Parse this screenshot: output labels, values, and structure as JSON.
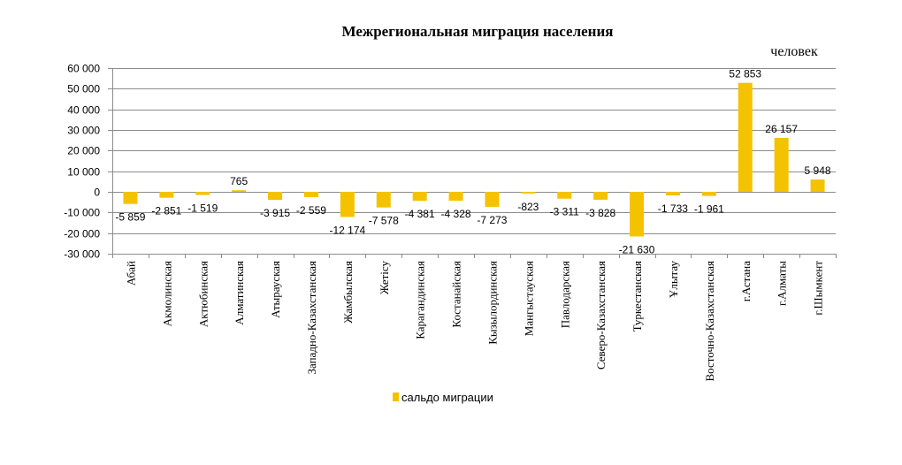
{
  "chart_data": {
    "type": "bar",
    "title": "Межрегиональная миграция населения",
    "unit_label": "человек",
    "xlabel": "",
    "ylabel": "",
    "ylim": [
      -30000,
      60000
    ],
    "yticks": [
      60000,
      50000,
      40000,
      30000,
      20000,
      10000,
      0,
      -10000,
      -20000,
      -30000
    ],
    "ytick_labels": [
      "60 000",
      "50 000",
      "40 000",
      "30 000",
      "20 000",
      "10 000",
      "0",
      "-10 000",
      "-20 000",
      "-30 000"
    ],
    "grid": true,
    "legend_position": "bottom",
    "categories": [
      "Абай",
      "Акмолинская",
      "Актюбинская",
      "Алматинская",
      "Атырауская",
      "Западно-Казахстанская",
      "Жамбылская",
      "Жетісу",
      "Карагандинская",
      "Костанайская",
      "Кызылординская",
      "Мангыстауская",
      "Павлодарская",
      "Северо-Казахстанская",
      "Туркестанская",
      "Ұлытау",
      "Восточно-Казахстанская",
      "г.Астана",
      "г.Алматы",
      "г.Шымкент"
    ],
    "series": [
      {
        "name": "сальдо миграции",
        "color": "#F5C200",
        "values": [
          -5859,
          -2851,
          -1519,
          765,
          -3915,
          -2559,
          -12174,
          -7578,
          -4381,
          -4328,
          -7273,
          -823,
          -3311,
          -3828,
          -21630,
          -1733,
          -1961,
          52853,
          26157,
          5948
        ],
        "labels": [
          "-5 859",
          "-2 851",
          "-1 519",
          "765",
          "-3 915",
          "-2 559",
          "-12 174",
          "-7 578",
          "-4 381",
          "-4 328",
          "-7 273",
          "-823",
          "-3 311",
          "-3 828",
          "-21 630",
          "-1 733",
          "-1 961",
          "52 853",
          "26 157",
          "5 948"
        ]
      }
    ]
  }
}
